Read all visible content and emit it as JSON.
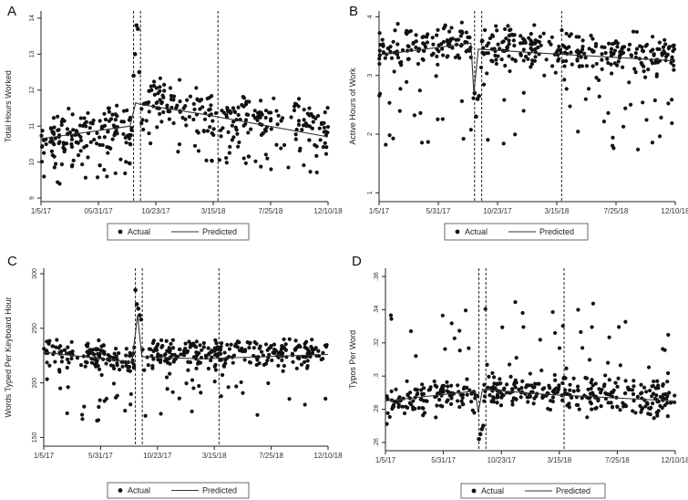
{
  "colors": {
    "points": "#111111",
    "line": "#333333",
    "axis": "#222222",
    "background": "#ffffff"
  },
  "legend": {
    "actual_label": "Actual",
    "predicted_label": "Predicted"
  },
  "x_ticks": [
    "1/5/17",
    "5/31/17",
    "10/23/17",
    "3/15/18",
    "7/25/18",
    "12/10/18"
  ],
  "chart_data": [
    {
      "panel": "A",
      "type": "scatter",
      "ylabel": "Total Hours Worked",
      "x_tick_labels": [
        "1/5/17",
        "05/31/17",
        "10/23/17",
        "3/15/18",
        "7/25/18",
        "12/10/18"
      ],
      "y_ticks": [
        9,
        10,
        11,
        12,
        13,
        14
      ],
      "ylim": [
        8.9,
        14.2
      ],
      "x_domain": [
        "2017-01-05",
        "2018-12-10"
      ],
      "vlines": [
        "2017-08-20",
        "2017-09-06",
        "2018-03-15"
      ],
      "series": [
        {
          "name": "Actual",
          "kind": "points",
          "base": [
            [
              0,
              10.7
            ],
            [
              0.28,
              11.0
            ],
            [
              0.32,
              11.05
            ],
            [
              0.38,
              11.8
            ],
            [
              0.4,
              11.7
            ],
            [
              0.6,
              11.4
            ],
            [
              1,
              11.0
            ]
          ],
          "spread": 0.45,
          "low_spread": 1.4,
          "low_frac": 0.22,
          "spike": {
            "start": 0.32,
            "end": 0.345,
            "values": [
              12.4,
              13.0,
              13.8,
              13.7,
              12.5
            ]
          }
        },
        {
          "name": "Predicted",
          "kind": "line",
          "points": [
            [
              0,
              10.65
            ],
            [
              0.31,
              11.0
            ],
            [
              0.33,
              11.65
            ],
            [
              0.345,
              11.6
            ],
            [
              0.55,
              11.35
            ],
            [
              1,
              10.7
            ]
          ]
        }
      ]
    },
    {
      "panel": "B",
      "type": "scatter",
      "ylabel": "Active Hours of Work",
      "x_tick_labels": [
        "1/5/17",
        "5/31/17",
        "10/23/17",
        "3/15/18",
        "7/25/18",
        "12/10/18"
      ],
      "y_ticks": [
        1,
        2,
        3,
        4
      ],
      "ylim": [
        0.85,
        4.1
      ],
      "x_domain": [
        "2017-01-05",
        "2018-12-10"
      ],
      "vlines": [
        "2017-08-20",
        "2017-09-06",
        "2018-03-15"
      ],
      "series": [
        {
          "name": "Actual",
          "kind": "points",
          "base": [
            [
              0,
              3.45
            ],
            [
              0.32,
              3.55
            ],
            [
              0.34,
              3.5
            ],
            [
              0.6,
              3.45
            ],
            [
              1,
              3.3
            ]
          ],
          "spread": 0.25,
          "low_spread": 2.0,
          "low_frac": 0.15,
          "spike": {
            "start": 0.32,
            "end": 0.34,
            "values": [
              2.7,
              2.3,
              2.6,
              2.65
            ]
          }
        },
        {
          "name": "Predicted",
          "kind": "line",
          "points": [
            [
              0,
              3.35
            ],
            [
              0.31,
              3.55
            ],
            [
              0.32,
              2.7
            ],
            [
              0.335,
              3.45
            ],
            [
              0.55,
              3.38
            ],
            [
              1,
              3.25
            ]
          ]
        }
      ]
    },
    {
      "panel": "C",
      "type": "scatter",
      "ylabel": "Words Typed Per Keyboard Hour",
      "x_tick_labels": [
        "1/5/17",
        "5/31/17",
        "10/23/17",
        "3/15/18",
        "7/25/18",
        "12/10/18"
      ],
      "y_ticks": [
        150,
        200,
        250,
        300
      ],
      "ylim": [
        142,
        305
      ],
      "x_domain": [
        "2017-01-05",
        "2018-12-10"
      ],
      "vlines": [
        "2017-08-20",
        "2017-09-06",
        "2018-03-15"
      ],
      "series": [
        {
          "name": "Actual",
          "kind": "points",
          "base": [
            [
              0,
              228
            ],
            [
              0.3,
              222
            ],
            [
              0.34,
              226
            ],
            [
              0.6,
              226
            ],
            [
              1,
              228
            ]
          ],
          "spread": 10,
          "low_spread": 70,
          "low_frac": 0.1,
          "spike": {
            "start": 0.32,
            "end": 0.345,
            "values": [
              285,
              272,
              268,
              262,
              258
            ]
          }
        },
        {
          "name": "Predicted",
          "kind": "line",
          "points": [
            [
              0,
              228
            ],
            [
              0.31,
              219
            ],
            [
              0.33,
              262
            ],
            [
              0.345,
              224
            ],
            [
              0.55,
              222
            ],
            [
              1,
              226
            ]
          ]
        }
      ]
    },
    {
      "panel": "D",
      "type": "scatter",
      "ylabel": "Typos Per Word",
      "x_tick_labels": [
        "1/5/17",
        "5/31/17",
        "10/23/17",
        "3/15/18",
        "7/25/18",
        "12/10/18"
      ],
      "y_ticks": [
        0.26,
        0.28,
        0.3,
        0.32,
        0.34,
        0.36
      ],
      "y_tick_labels": [
        ".26",
        ".28",
        ".3",
        ".32",
        ".34",
        ".36"
      ],
      "ylim": [
        0.255,
        0.365
      ],
      "x_domain": [
        "2017-01-05",
        "2018-12-10"
      ],
      "vlines": [
        "2017-08-20",
        "2017-09-06",
        "2018-03-15"
      ],
      "series": [
        {
          "name": "Actual",
          "kind": "points",
          "base": [
            [
              0,
              0.284
            ],
            [
              0.32,
              0.289
            ],
            [
              0.34,
              0.291
            ],
            [
              0.6,
              0.289
            ],
            [
              1,
              0.286
            ]
          ],
          "spread": 0.008,
          "high_spread": 0.06,
          "high_frac": 0.1,
          "spike": {
            "start": 0.32,
            "end": 0.34,
            "values": [
              0.262,
              0.265,
              0.268,
              0.27
            ]
          }
        },
        {
          "name": "Predicted",
          "kind": "line",
          "points": [
            [
              0,
              0.285
            ],
            [
              0.31,
              0.291
            ],
            [
              0.32,
              0.278
            ],
            [
              0.335,
              0.292
            ],
            [
              0.55,
              0.289
            ],
            [
              1,
              0.285
            ]
          ]
        }
      ]
    }
  ]
}
